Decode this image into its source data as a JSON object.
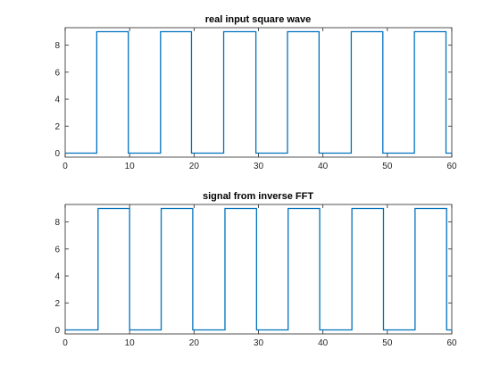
{
  "chart_data": [
    {
      "type": "line",
      "title": "real input square wave",
      "xlabel": "",
      "ylabel": "",
      "xlim": [
        0,
        60
      ],
      "ylim": [
        -0.3,
        9.3
      ],
      "xticks": [
        0,
        10,
        20,
        30,
        40,
        50,
        60
      ],
      "yticks": [
        0,
        2,
        4,
        6,
        8
      ],
      "grid": false,
      "color": "#0072BD",
      "series": [
        {
          "x": [
            0,
            4.9,
            4.9,
            9.8,
            9.8,
            14.8,
            14.8,
            19.6,
            19.6,
            24.6,
            24.6,
            29.6,
            29.6,
            34.5,
            34.5,
            39.4,
            39.4,
            44.4,
            44.4,
            49.3,
            49.3,
            54.2,
            54.2,
            59.1,
            59.1,
            60
          ],
          "y": [
            0,
            0,
            9,
            9,
            0,
            0,
            9,
            9,
            0,
            0,
            9,
            9,
            0,
            0,
            9,
            9,
            0,
            0,
            9,
            9,
            0,
            0,
            9,
            9,
            0,
            0
          ]
        }
      ]
    },
    {
      "type": "line",
      "title": "signal from inverse FFT",
      "xlabel": "",
      "ylabel": "",
      "xlim": [
        0,
        60
      ],
      "ylim": [
        -0.3,
        9.3
      ],
      "xticks": [
        0,
        10,
        20,
        30,
        40,
        50,
        60
      ],
      "yticks": [
        0,
        2,
        4,
        6,
        8
      ],
      "grid": false,
      "color": "#0072BD",
      "series": [
        {
          "x": [
            0,
            5.1,
            5.1,
            10.0,
            10.0,
            14.9,
            14.9,
            19.8,
            19.8,
            24.8,
            24.8,
            29.7,
            29.7,
            34.6,
            34.6,
            39.5,
            39.5,
            44.5,
            44.5,
            49.4,
            49.4,
            54.3,
            54.3,
            59.2,
            59.2,
            60
          ],
          "y": [
            0,
            0,
            9,
            9,
            0,
            0,
            9,
            9,
            0,
            0,
            9,
            9,
            0,
            0,
            9,
            9,
            0,
            0,
            9,
            9,
            0,
            0,
            9,
            9,
            0,
            0
          ]
        }
      ]
    }
  ]
}
